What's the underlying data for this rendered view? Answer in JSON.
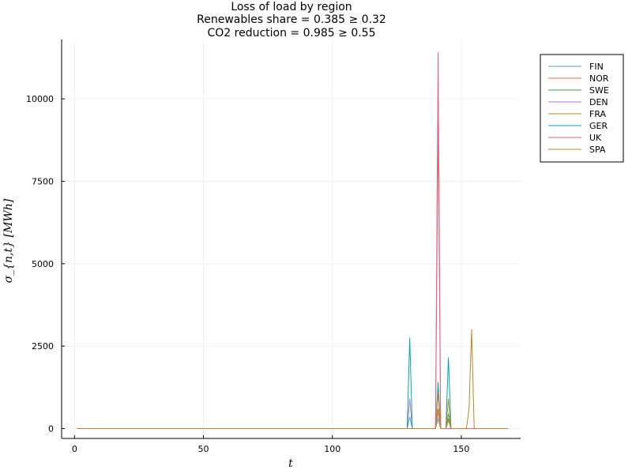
{
  "chart_data": {
    "type": "line",
    "title_lines": [
      "Loss of load by region",
      "Renewables share = 0.385 ≥ 0.32",
      "CO2 reduction = 0.985 ≥ 0.55"
    ],
    "xlabel": "t",
    "ylabel": "σ_{n,t} [MWh]",
    "xlim": [
      -5,
      173
    ],
    "ylim": [
      -300,
      11800
    ],
    "xticks": [
      0,
      50,
      100,
      150
    ],
    "yticks": [
      0,
      2500,
      5000,
      7500,
      10000
    ],
    "grid": true,
    "legend_position": "top-right (outside)",
    "x_range": [
      1,
      168
    ],
    "series": [
      {
        "name": "FIN",
        "color": "#52a1dc",
        "points": [
          [
            129,
            0
          ],
          [
            130,
            350
          ],
          [
            131,
            0
          ],
          [
            140,
            0
          ],
          [
            141,
            300
          ],
          [
            142,
            0
          ],
          [
            144,
            0
          ],
          [
            145,
            250
          ],
          [
            146,
            0
          ]
        ]
      },
      {
        "name": "NOR",
        "color": "#e26f46",
        "points": [
          [
            140,
            0
          ],
          [
            141,
            9300
          ],
          [
            142,
            0
          ]
        ]
      },
      {
        "name": "SWE",
        "color": "#3da44d",
        "points": [
          [
            140,
            0
          ],
          [
            141,
            1200
          ],
          [
            142,
            0
          ],
          [
            144,
            0
          ],
          [
            145,
            450
          ],
          [
            146,
            0
          ]
        ]
      },
      {
        "name": "DEN",
        "color": "#c271d2",
        "points": [
          [
            129,
            0
          ],
          [
            130,
            900
          ],
          [
            131,
            0
          ],
          [
            140,
            0
          ],
          [
            141,
            500
          ],
          [
            142,
            0
          ]
        ]
      },
      {
        "name": "FRA",
        "color": "#ac8d18",
        "points": [
          [
            140,
            0
          ],
          [
            141,
            600
          ],
          [
            142,
            0
          ],
          [
            144,
            0
          ],
          [
            145,
            300
          ],
          [
            146,
            0
          ]
        ]
      },
      {
        "name": "GER",
        "color": "#00a9ad",
        "points": [
          [
            129,
            0
          ],
          [
            130,
            2750
          ],
          [
            131,
            0
          ],
          [
            140,
            0
          ],
          [
            141,
            1400
          ],
          [
            142,
            0
          ],
          [
            144,
            0
          ],
          [
            145,
            2150
          ],
          [
            146,
            0
          ]
        ]
      },
      {
        "name": "UK",
        "color": "#ed5d92",
        "points": [
          [
            140,
            0
          ],
          [
            141,
            11400
          ],
          [
            142,
            0
          ]
        ]
      },
      {
        "name": "SPA",
        "color": "#c68225",
        "points": [
          [
            140,
            0
          ],
          [
            141,
            1100
          ],
          [
            142,
            0
          ],
          [
            144,
            0
          ],
          [
            145,
            900
          ],
          [
            146,
            0
          ],
          [
            152,
            0
          ],
          [
            153,
            600
          ],
          [
            154,
            3000
          ],
          [
            155,
            0
          ]
        ]
      }
    ]
  }
}
